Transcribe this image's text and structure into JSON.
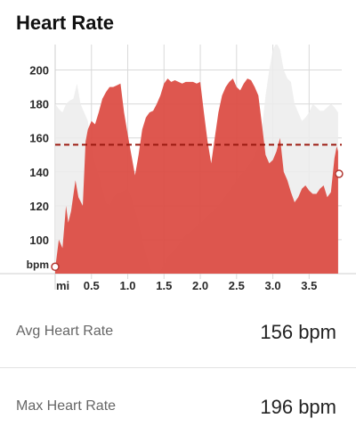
{
  "header": {
    "title": "Heart Rate"
  },
  "chart_data": {
    "type": "area",
    "xlabel": "mi",
    "ylabel": "bpm",
    "xlim": [
      0,
      3.95
    ],
    "ylim": [
      80,
      215
    ],
    "x_ticks": [
      0.5,
      1.0,
      1.5,
      2.0,
      2.5,
      3.0,
      3.5
    ],
    "x_tick_labels": [
      "0.5",
      "1.0",
      "1.5",
      "2.0",
      "2.5",
      "3.0",
      "3.5"
    ],
    "y_ticks": [
      100,
      120,
      140,
      160,
      180,
      200
    ],
    "y_tick_labels": [
      "100",
      "120",
      "140",
      "160",
      "180",
      "200"
    ],
    "average_line": 156,
    "colors": {
      "heart_rate": "#dc4a42",
      "comparison": "#ececec",
      "average": "#9b1a10",
      "grid": "#d9d9d9"
    },
    "series": [
      {
        "role": "heart_rate",
        "x": [
          0,
          0.05,
          0.1,
          0.15,
          0.18,
          0.22,
          0.28,
          0.32,
          0.38,
          0.42,
          0.45,
          0.5,
          0.55,
          0.6,
          0.65,
          0.7,
          0.75,
          0.8,
          0.85,
          0.9,
          0.95,
          1.0,
          1.05,
          1.1,
          1.15,
          1.2,
          1.25,
          1.3,
          1.35,
          1.4,
          1.45,
          1.5,
          1.55,
          1.6,
          1.65,
          1.7,
          1.75,
          1.8,
          1.85,
          1.9,
          1.95,
          2.0,
          2.05,
          2.1,
          2.15,
          2.2,
          2.25,
          2.3,
          2.35,
          2.4,
          2.45,
          2.5,
          2.55,
          2.6,
          2.65,
          2.7,
          2.75,
          2.8,
          2.85,
          2.9,
          2.95,
          3.0,
          3.05,
          3.1,
          3.15,
          3.2,
          3.25,
          3.3,
          3.35,
          3.4,
          3.45,
          3.5,
          3.55,
          3.6,
          3.65,
          3.7,
          3.75,
          3.8,
          3.85,
          3.88,
          3.9
        ],
        "values": [
          83,
          100,
          95,
          120,
          110,
          117,
          135,
          125,
          120,
          158,
          165,
          170,
          168,
          175,
          183,
          187,
          190,
          190,
          191,
          192,
          175,
          162,
          150,
          138,
          150,
          165,
          172,
          175,
          176,
          180,
          185,
          192,
          195,
          193,
          194,
          193,
          192,
          193,
          193,
          193,
          192,
          193,
          175,
          158,
          145,
          160,
          175,
          185,
          190,
          193,
          195,
          190,
          188,
          192,
          195,
          194,
          190,
          185,
          168,
          150,
          145,
          147,
          152,
          160,
          140,
          135,
          128,
          122,
          125,
          130,
          132,
          129,
          127,
          127,
          130,
          132,
          125,
          128,
          148,
          155,
          152
        ]
      },
      {
        "role": "comparison",
        "x": [
          0,
          0.05,
          0.1,
          0.15,
          0.2,
          0.25,
          0.3,
          0.35,
          0.4,
          0.45,
          0.5,
          0.55,
          0.6,
          0.65,
          0.7,
          0.75,
          0.8,
          0.85,
          0.9,
          0.95,
          1.0,
          1.05,
          1.1,
          1.15,
          1.2,
          1.25,
          1.3,
          1.35,
          1.4,
          1.45,
          1.5,
          1.55,
          1.6,
          1.65,
          1.7,
          1.75,
          1.8,
          1.85,
          1.9,
          1.95,
          2.0,
          2.05,
          2.1,
          2.15,
          2.2,
          2.25,
          2.3,
          2.35,
          2.4,
          2.45,
          2.5,
          2.55,
          2.6,
          2.65,
          2.7,
          2.75,
          2.8,
          2.85,
          2.9,
          2.95,
          3.0,
          3.05,
          3.1,
          3.15,
          3.2,
          3.25,
          3.3,
          3.35,
          3.4,
          3.45,
          3.5,
          3.55,
          3.6,
          3.65,
          3.7,
          3.75,
          3.8,
          3.85,
          3.9
        ],
        "values": [
          180,
          177,
          175,
          180,
          182,
          183,
          192,
          180,
          175,
          170,
          155,
          145,
          138,
          130,
          122,
          120,
          125,
          127,
          128,
          129,
          130,
          125,
          118,
          110,
          100,
          92,
          84,
          80,
          80,
          82,
          85,
          90,
          92,
          94,
          97,
          100,
          103,
          104,
          106,
          108,
          110,
          112,
          114,
          116,
          118,
          120,
          123,
          126,
          129,
          132,
          135,
          138,
          140,
          143,
          146,
          150,
          155,
          165,
          185,
          200,
          212,
          216,
          212,
          200,
          195,
          193,
          180,
          175,
          170,
          172,
          175,
          180,
          178,
          176,
          176,
          178,
          180,
          178,
          175
        ]
      }
    ]
  },
  "stats": {
    "avg": {
      "label": "Avg Heart Rate",
      "value": "156 bpm"
    },
    "max": {
      "label": "Max Heart Rate",
      "value": "196 bpm"
    }
  }
}
